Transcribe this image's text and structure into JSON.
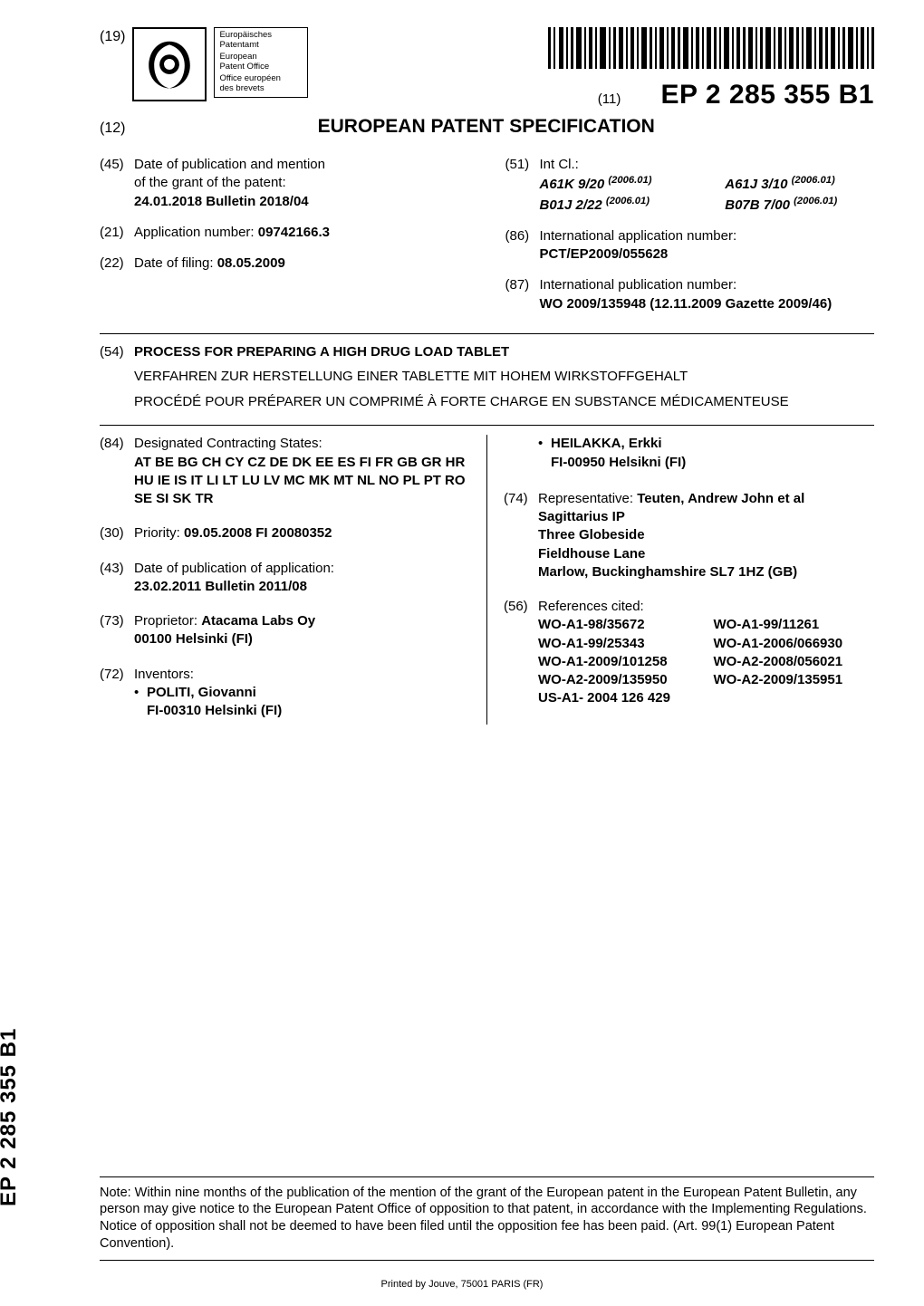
{
  "header": {
    "nineteen": "(19)",
    "office_names": [
      "Europäisches",
      "Patentamt",
      "European",
      "Patent Office",
      "Office européen",
      "des brevets"
    ],
    "pub_eleven": "(11)",
    "pub_number": "EP 2 285 355 B1",
    "twelve": "(12)",
    "spec_title": "EUROPEAN PATENT SPECIFICATION"
  },
  "left_col": {
    "i45_tag": "(45)",
    "i45_l1": "Date of publication and mention",
    "i45_l2": "of the grant of the patent:",
    "i45_l3": "24.01.2018  Bulletin 2018/04",
    "i21_tag": "(21)",
    "i21": "Application number:",
    "i21_val": "09742166.3",
    "i22_tag": "(22)",
    "i22": "Date of filing:",
    "i22_val": "08.05.2009"
  },
  "right_col": {
    "i51_tag": "(51)",
    "i51": "Int Cl.:",
    "ipc": [
      {
        "code": "A61K 9/20",
        "ver": "(2006.01)"
      },
      {
        "code": "A61J 3/10",
        "ver": "(2006.01)"
      },
      {
        "code": "B01J 2/22",
        "ver": "(2006.01)"
      },
      {
        "code": "B07B 7/00",
        "ver": "(2006.01)"
      }
    ],
    "i86_tag": "(86)",
    "i86_l1": "International application number:",
    "i86_l2": "PCT/EP2009/055628",
    "i87_tag": "(87)",
    "i87_l1": "International publication number:",
    "i87_l2": "WO 2009/135948 (12.11.2009 Gazette 2009/46)"
  },
  "title54": {
    "tag": "(54)",
    "en": "PROCESS FOR PREPARING A HIGH DRUG LOAD TABLET",
    "de": "VERFAHREN ZUR HERSTELLUNG EINER TABLETTE MIT HOHEM WIRKSTOFFGEHALT",
    "fr": "PROCÉDÉ POUR PRÉPARER UN COMPRIMÉ À FORTE CHARGE EN SUBSTANCE MÉDICAMENTEUSE"
  },
  "lowerL": {
    "i84_tag": "(84)",
    "i84_l1": "Designated Contracting States:",
    "i84_l2": "AT BE BG CH CY CZ DE DK EE ES FI FR GB GR HR HU IE IS IT LI LT LU LV MC MK MT NL NO PL PT RO SE SI SK TR",
    "i30_tag": "(30)",
    "i30": "Priority:",
    "i30_val": "09.05.2008  FI 20080352",
    "i43_tag": "(43)",
    "i43_l1": "Date of publication of application:",
    "i43_l2": "23.02.2011  Bulletin 2011/08",
    "i73_tag": "(73)",
    "i73_l1": "Proprietor:",
    "i73_name": "Atacama Labs Oy",
    "i73_addr": "00100 Helsinki (FI)",
    "i72_tag": "(72)",
    "i72_l1": "Inventors:",
    "inv": [
      {
        "name": "POLITI, Giovanni",
        "addr": "FI-00310 Helsinki (FI)"
      }
    ]
  },
  "lowerR": {
    "inv2": [
      {
        "name": "HEILAKKA, Erkki",
        "addr": "FI-00950 Helsikni (FI)"
      }
    ],
    "i74_tag": "(74)",
    "i74_l1": "Representative:",
    "i74_name": "Teuten, Andrew John et al",
    "i74_addr": [
      "Sagittarius IP",
      "Three Globeside",
      "Fieldhouse Lane",
      "Marlow, Buckinghamshire SL7 1HZ (GB)"
    ],
    "i56_tag": "(56)",
    "i56_l1": "References cited:",
    "refs": [
      "WO-A1-98/35672",
      "WO-A1-99/11261",
      "WO-A1-99/25343",
      "WO-A1-2006/066930",
      "WO-A1-2009/101258",
      "WO-A2-2008/056021",
      "WO-A2-2009/135950",
      "WO-A2-2009/135951",
      "US-A1- 2004 126 429",
      ""
    ]
  },
  "note": "Note: Within nine months of the publication of the mention of the grant of the European patent in the European Patent Bulletin, any person may give notice to the European Patent Office of opposition to that patent, in accordance with the Implementing Regulations. Notice of opposition shall not be deemed to have been filed until the opposition fee has been paid. (Art. 99(1) European Patent Convention).",
  "spine": "EP 2 285 355 B1",
  "printer": "Printed by Jouve, 75001 PARIS (FR)",
  "colors": {
    "text": "#000000",
    "bg": "#ffffff",
    "rule": "#000000"
  }
}
